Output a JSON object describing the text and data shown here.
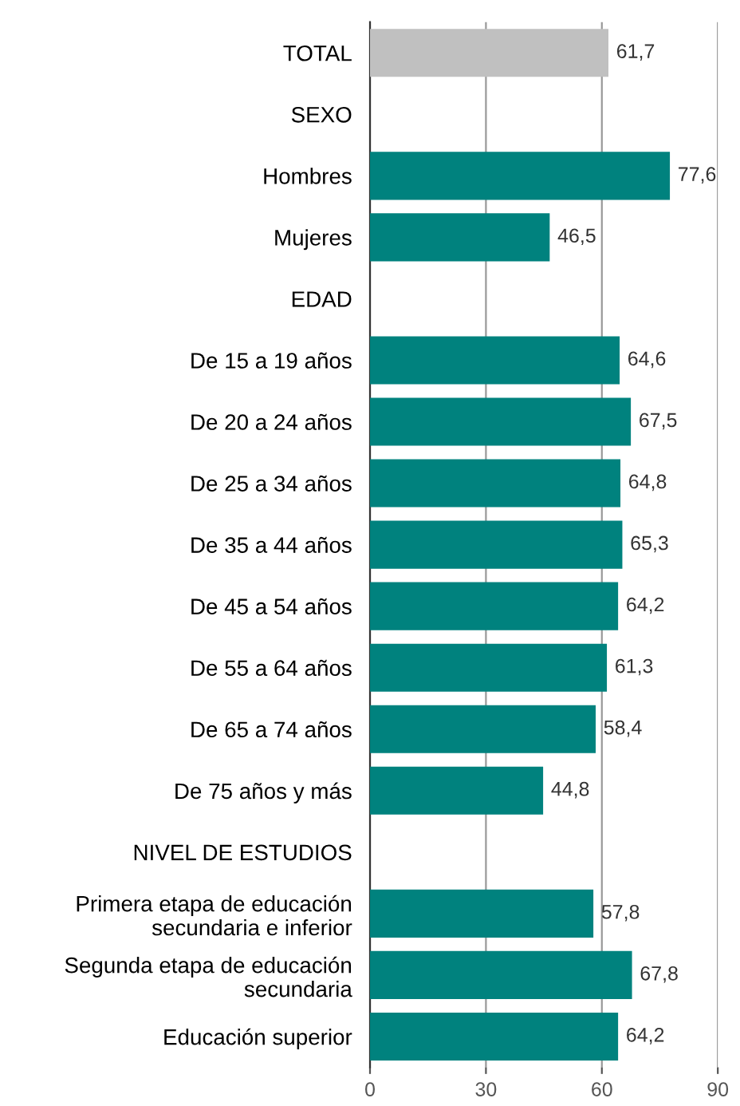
{
  "chart_data": {
    "type": "bar",
    "orientation": "horizontal",
    "categories": [
      "TOTAL",
      "SEXO",
      "Hombres",
      "Mujeres",
      "EDAD",
      "De 15 a 19 años",
      "De 20 a 24 años",
      "De 25 a 34 años",
      "De 35 a 44 años",
      "De 45 a 54 años",
      "De 55 a 64 años",
      "De 65 a 74 años",
      "De 75 años y más",
      "NIVEL DE ESTUDIOS",
      "Primera etapa de educación\nsecundaria e inferior",
      "Segunda etapa de educación\nsecundaria",
      "Educación superior"
    ],
    "values": [
      61.7,
      null,
      77.6,
      46.5,
      null,
      64.6,
      67.5,
      64.8,
      65.3,
      64.2,
      61.3,
      58.4,
      44.8,
      null,
      57.8,
      67.8,
      64.2
    ],
    "value_labels": [
      "61,7",
      null,
      "77,6",
      "46,5",
      null,
      "64,6",
      "67,5",
      "64,8",
      "65,3",
      "64,2",
      "61,3",
      "58,4",
      "44,8",
      null,
      "57,8",
      "67,8",
      "64,2"
    ],
    "colors": [
      "#c0c0c0",
      null,
      "#00827e",
      "#00827e",
      null,
      "#00827e",
      "#00827e",
      "#00827e",
      "#00827e",
      "#00827e",
      "#00827e",
      "#00827e",
      "#00827e",
      null,
      "#00827e",
      "#00827e",
      "#00827e"
    ],
    "xlim": [
      0,
      90
    ],
    "xticks": [
      0,
      30,
      60,
      90
    ],
    "grid": "x"
  }
}
